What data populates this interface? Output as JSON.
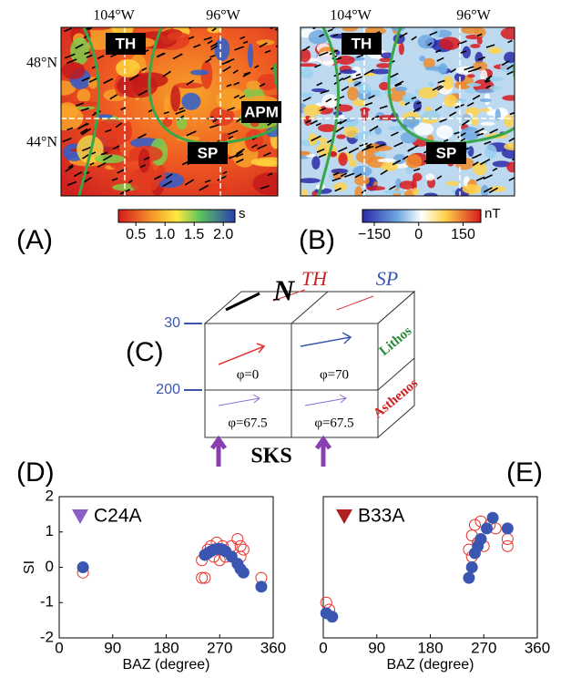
{
  "panel_labels": [
    "(A)",
    "(B)",
    "(C)",
    "(D)",
    "(E)"
  ],
  "maps": [
    {
      "lon_labels": [
        "104°W",
        "96°W"
      ],
      "lat_labels": [
        "48°N",
        "44°N"
      ],
      "labels": [
        "TH",
        "SP",
        "APM"
      ],
      "colorbar": {
        "clim": [
          0.2,
          2.2
        ],
        "ticks": [
          0.5,
          {
            "value": 1,
            "label": "1.0"
          },
          1.5,
          {
            "value": 2,
            "label": "2.0"
          }
        ],
        "unit": "s"
      }
    },
    {
      "lon_labels": [
        "104°W",
        "96°W"
      ],
      "labels": [
        "TH",
        "SP"
      ],
      "colorbar": {
        "clim": [
          -190,
          210
        ],
        "ticks": [
          {
            "value": -150,
            "label": "−150"
          },
          0,
          150
        ],
        "unit": "nT"
      }
    }
  ],
  "diagram": {
    "north": "N",
    "top_labels": [
      "TH",
      "SP"
    ],
    "depths": [
      30,
      200
    ],
    "layers": [
      "Lithos",
      "Asthenos"
    ],
    "phi": [
      "φ=0",
      "φ=70",
      "φ=67.5",
      "φ=67.5"
    ],
    "source": "SKS"
  },
  "chart_data": [
    {
      "type": "scatter",
      "title": "C24A",
      "ylabel": "SI",
      "xlabel": "BAZ (degree)",
      "xlim": [
        0,
        360
      ],
      "xticks": [
        0,
        90,
        180,
        270,
        360
      ],
      "ylim": [
        -2,
        2
      ],
      "yticks": [
        -2,
        -1,
        0,
        1,
        2
      ],
      "series": [
        {
          "color": "#e8302a",
          "marker": "open",
          "x": [
            40,
            240,
            245,
            250,
            255,
            260,
            265,
            270,
            275,
            280,
            290,
            300,
            305,
            310,
            305,
            340,
            240
          ],
          "values": [
            -0.15,
            0.2,
            -0.3,
            0.5,
            0.6,
            0.3,
            0.7,
            0.2,
            0.6,
            0.3,
            0.6,
            0.8,
            0.6,
            0.5,
            0.3,
            -0.3,
            -0.3
          ]
        },
        {
          "color": "#3a56b0",
          "marker": "filled",
          "x": [
            40,
            245,
            250,
            255,
            260,
            265,
            270,
            275,
            280,
            290,
            300,
            305,
            310,
            340
          ],
          "values": [
            0,
            0.35,
            0.4,
            0.45,
            0.5,
            0.52,
            0.52,
            0.5,
            0.45,
            0.3,
            0.1,
            -0.05,
            -0.15,
            -0.55
          ]
        }
      ]
    },
    {
      "type": "scatter",
      "title": "B33A",
      "xlabel": "BAZ (degree)",
      "xlim": [
        0,
        360
      ],
      "xticks": [
        0,
        90,
        180,
        270,
        360
      ],
      "ylim": [
        -2,
        2
      ],
      "series": [
        {
          "color": "#e8302a",
          "marker": "open",
          "x": [
            5,
            10,
            245,
            250,
            255,
            260,
            265,
            270,
            280,
            290,
            310,
            310,
            250
          ],
          "values": [
            -1,
            -1.2,
            0.5,
            0.9,
            1.2,
            0.7,
            1.3,
            0.6,
            1.2,
            1.1,
            0.8,
            0.6,
            0.3
          ]
        },
        {
          "color": "#3a56b0",
          "marker": "filled",
          "x": [
            5,
            15,
            245,
            250,
            255,
            260,
            265,
            275,
            285,
            310
          ],
          "values": [
            -1.3,
            -1.4,
            -0.3,
            0,
            0.4,
            0.6,
            0.8,
            1.1,
            1.4,
            1.1
          ]
        }
      ]
    }
  ]
}
